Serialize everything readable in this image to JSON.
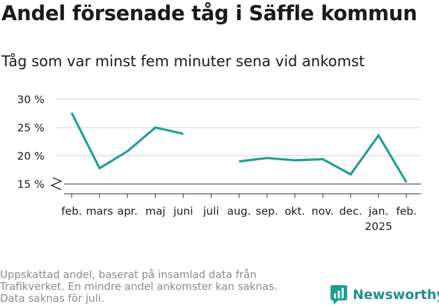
{
  "title": "Andel försenade tåg i Säffle kommun",
  "subtitle": "Tåg som var minst fem minuter sena vid ankomst",
  "footnote": [
    "Uppskattad andel, baserat på insamlad data från",
    "Trafikverket. En mindre andel ankomster kan saknas.",
    "Data saknas för juli."
  ],
  "brand": {
    "name": "Newsworthy",
    "icon": "newsworthy-logo-icon",
    "color": "#1e9e92"
  },
  "chart_data": {
    "type": "line",
    "title": "Andel försenade tåg i Säffle kommun",
    "subtitle": "Tåg som var minst fem minuter sena vid ankomst",
    "xlabel": "",
    "ylabel": "",
    "categories": [
      "feb.",
      "mars",
      "apr.",
      "maj",
      "juni",
      "juli",
      "aug.",
      "sep.",
      "okt.",
      "nov.",
      "dec.",
      "jan.",
      "feb."
    ],
    "category_sublabels": [
      "",
      "",
      "",
      "",
      "",
      "",
      "",
      "",
      "",
      "",
      "",
      "2025",
      ""
    ],
    "series": [
      {
        "values": [
          27.6,
          17.8,
          20.8,
          25.0,
          23.9,
          null,
          19.0,
          19.6,
          19.2,
          19.4,
          16.7,
          23.6,
          15.3
        ]
      }
    ],
    "yticks": [
      15,
      20,
      25,
      30
    ],
    "ytick_labels": [
      "15 %",
      "20 %",
      "25 %",
      "30 %"
    ],
    "ylim": [
      14,
      30
    ],
    "y_axis_break": true,
    "grid": true,
    "line_color": "#1e9e92"
  }
}
